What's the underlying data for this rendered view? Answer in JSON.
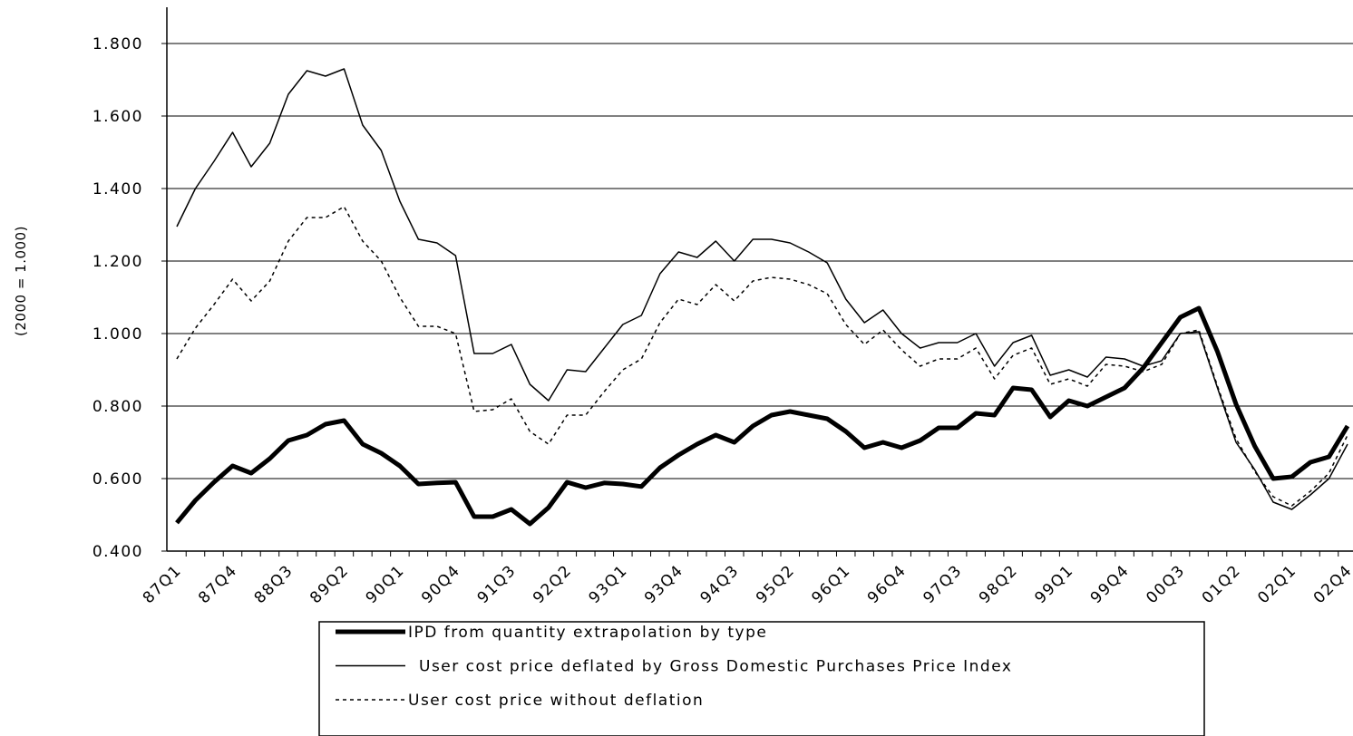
{
  "chart_data": {
    "type": "line",
    "y_label": "(2000 = 1.000)",
    "categories": [
      "87Q1",
      null,
      null,
      "87Q4",
      null,
      null,
      "88Q3",
      null,
      null,
      "89Q2",
      null,
      null,
      "90Q1",
      null,
      null,
      "90Q4",
      null,
      null,
      "91Q3",
      null,
      null,
      "92Q2",
      null,
      null,
      "93Q1",
      null,
      null,
      "93Q4",
      null,
      null,
      "94Q3",
      null,
      null,
      "95Q2",
      null,
      null,
      "96Q1",
      null,
      null,
      "96Q4",
      null,
      null,
      "97Q3",
      null,
      null,
      "98Q2",
      null,
      null,
      "99Q1",
      null,
      null,
      "99Q4",
      null,
      null,
      "00Q3",
      null,
      null,
      "01Q2",
      null,
      null,
      "02Q1",
      null,
      null,
      "02Q4"
    ],
    "ylim": [
      0.4,
      1.9
    ],
    "yticks": [
      {
        "value": 0.4,
        "label": "0.400"
      },
      {
        "value": 0.6,
        "label": "0.600"
      },
      {
        "value": 0.8,
        "label": "0.800"
      },
      {
        "value": 1.0,
        "label": "1.000"
      },
      {
        "value": 1.2,
        "label": "1.200"
      },
      {
        "value": 1.4,
        "label": "1.400"
      },
      {
        "value": 1.6,
        "label": "1.600"
      },
      {
        "value": 1.8,
        "label": "1.800"
      }
    ],
    "grid": true,
    "legend": "bottom",
    "series": [
      {
        "name": "IPD from quantity extrapolation by type",
        "color": "#000000",
        "line_width": 5,
        "line_style": "solid",
        "values": [
          0.478,
          0.54,
          0.59,
          0.635,
          0.615,
          0.655,
          0.705,
          0.72,
          0.75,
          0.76,
          0.695,
          0.67,
          0.635,
          0.585,
          0.588,
          0.59,
          0.495,
          0.495,
          0.515,
          0.475,
          0.52,
          0.59,
          0.575,
          0.588,
          0.585,
          0.578,
          0.63,
          0.665,
          0.695,
          0.72,
          0.7,
          0.745,
          0.775,
          0.785,
          0.775,
          0.765,
          0.73,
          0.685,
          0.7,
          0.685,
          0.705,
          0.74,
          0.74,
          0.78,
          0.775,
          0.85,
          0.845,
          0.77,
          0.815,
          0.8,
          0.825,
          0.85,
          0.905,
          0.975,
          1.045,
          1.07,
          0.95,
          0.805,
          0.69,
          0.6,
          0.605,
          0.645,
          0.66,
          0.745
        ]
      },
      {
        "name": "User cost price deflated by Gross Domestic Purchases Price Index",
        "color": "#000000",
        "line_width": 1.5,
        "line_style": "solid",
        "values": [
          1.295,
          1.4,
          1.475,
          1.555,
          1.46,
          1.525,
          1.66,
          1.725,
          1.71,
          1.73,
          1.575,
          1.505,
          1.365,
          1.26,
          1.25,
          1.215,
          0.945,
          0.945,
          0.97,
          0.86,
          0.815,
          0.9,
          0.895,
          0.96,
          1.025,
          1.05,
          1.165,
          1.225,
          1.21,
          1.255,
          1.2,
          1.26,
          1.26,
          1.25,
          1.225,
          1.195,
          1.095,
          1.03,
          1.065,
          1.0,
          0.96,
          0.975,
          0.975,
          1.0,
          0.91,
          0.975,
          0.995,
          0.885,
          0.9,
          0.88,
          0.935,
          0.93,
          0.91,
          0.925,
          1.0,
          1.005,
          0.85,
          0.7,
          0.625,
          0.535,
          0.515,
          0.555,
          0.6,
          0.695
        ]
      },
      {
        "name": "User cost price without deflation",
        "color": "#000000",
        "line_width": 1.5,
        "line_style": "dotted",
        "values": [
          0.93,
          1.015,
          1.08,
          1.15,
          1.09,
          1.145,
          1.255,
          1.32,
          1.32,
          1.35,
          1.255,
          1.2,
          1.1,
          1.02,
          1.02,
          1.0,
          0.785,
          0.79,
          0.82,
          0.73,
          0.695,
          0.775,
          0.775,
          0.84,
          0.9,
          0.93,
          1.03,
          1.095,
          1.08,
          1.135,
          1.09,
          1.145,
          1.155,
          1.15,
          1.135,
          1.11,
          1.025,
          0.97,
          1.01,
          0.955,
          0.91,
          0.93,
          0.93,
          0.96,
          0.875,
          0.94,
          0.96,
          0.86,
          0.875,
          0.855,
          0.915,
          0.91,
          0.895,
          0.915,
          1.0,
          1.01,
          0.855,
          0.71,
          0.62,
          0.55,
          0.525,
          0.565,
          0.615,
          0.72
        ]
      }
    ]
  }
}
